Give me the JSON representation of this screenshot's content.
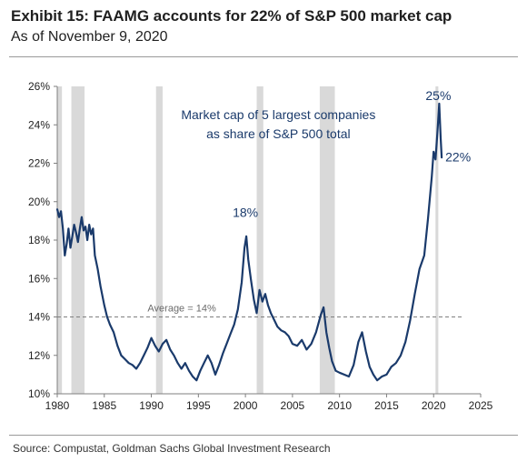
{
  "header": {
    "title": "Exhibit 15: FAAMG accounts for 22% of S&P 500 market cap",
    "subtitle": "As of November 9, 2020"
  },
  "footer": {
    "source": "Source: Compustat, Goldman Sachs Global Investment Research"
  },
  "chart_data": {
    "type": "line",
    "title": "",
    "xlabel": "",
    "ylabel": "",
    "xlim": [
      1980,
      2025
    ],
    "ylim": [
      10,
      26
    ],
    "x_ticks": [
      "1980",
      "1985",
      "1990",
      "1995",
      "2000",
      "2005",
      "2010",
      "2015",
      "2020",
      "2025"
    ],
    "y_ticks": [
      "10%",
      "12%",
      "14%",
      "16%",
      "18%",
      "20%",
      "22%",
      "24%",
      "26%"
    ],
    "grid": false,
    "line_color": "#1a3a6b",
    "shade_color": "#d9d9d9",
    "recessions": [
      [
        1980.0,
        1980.5
      ],
      [
        1981.5,
        1982.9
      ],
      [
        1990.5,
        1991.2
      ],
      [
        2001.2,
        2001.9
      ],
      [
        2007.9,
        2009.5
      ],
      [
        2020.2,
        2020.5
      ]
    ],
    "average": {
      "value": 14,
      "label": "Average = 14%"
    },
    "annotations": [
      {
        "text": "Market cap of 5 largest companies",
        "x": 2003.5,
        "y": 24.3
      },
      {
        "text": "as share of S&P 500 total",
        "x": 2003.5,
        "y": 23.3
      },
      {
        "text": "18%",
        "x": 2000.0,
        "y": 19.2
      },
      {
        "text": "25%",
        "x": 2020.5,
        "y": 25.3
      },
      {
        "text": "22%",
        "x": 2022.6,
        "y": 22.1
      }
    ],
    "series": [
      {
        "x": [
          1980.0,
          1980.2,
          1980.4,
          1980.6,
          1980.8,
          1981.0,
          1981.2,
          1981.4,
          1981.6,
          1981.8,
          1982.0,
          1982.2,
          1982.4,
          1982.6,
          1982.8,
          1983.0,
          1983.2,
          1983.4,
          1983.6,
          1983.8,
          1984.0,
          1984.3,
          1984.6,
          1985.0,
          1985.3,
          1985.6,
          1986.0,
          1986.4,
          1986.8,
          1987.2,
          1987.6,
          1988.0,
          1988.4,
          1988.8,
          1989.2,
          1989.6,
          1990.0,
          1990.4,
          1990.8,
          1991.2,
          1991.6,
          1992.0,
          1992.4,
          1992.8,
          1993.2,
          1993.6,
          1994.0,
          1994.4,
          1994.8,
          1995.2,
          1995.6,
          1996.0,
          1996.4,
          1996.8,
          1997.2,
          1997.6,
          1998.0,
          1998.4,
          1998.8,
          1999.2,
          1999.6,
          1999.9,
          2000.1,
          2000.3,
          2000.6,
          2000.9,
          2001.2,
          2001.5,
          2001.8,
          2002.1,
          2002.4,
          2002.7,
          2003.0,
          2003.4,
          2003.8,
          2004.2,
          2004.6,
          2005.0,
          2005.5,
          2006.0,
          2006.5,
          2007.0,
          2007.5,
          2008.0,
          2008.3,
          2008.6,
          2008.9,
          2009.2,
          2009.6,
          2010.0,
          2010.5,
          2011.0,
          2011.5,
          2012.0,
          2012.4,
          2012.8,
          2013.2,
          2013.6,
          2014.0,
          2014.5,
          2015.0,
          2015.5,
          2016.0,
          2016.5,
          2017.0,
          2017.5,
          2018.0,
          2018.5,
          2019.0,
          2019.4,
          2019.8,
          2020.0,
          2020.2,
          2020.4,
          2020.6,
          2020.75,
          2020.86
        ],
        "y": [
          19.6,
          19.2,
          19.5,
          18.6,
          17.2,
          17.8,
          18.6,
          17.6,
          18.2,
          18.8,
          18.4,
          17.9,
          18.6,
          19.2,
          18.5,
          18.7,
          18.0,
          18.8,
          18.3,
          18.6,
          17.2,
          16.5,
          15.6,
          14.6,
          14.0,
          13.6,
          13.2,
          12.5,
          12.0,
          11.8,
          11.6,
          11.5,
          11.3,
          11.6,
          12.0,
          12.4,
          12.9,
          12.5,
          12.2,
          12.6,
          12.8,
          12.3,
          12.0,
          11.6,
          11.3,
          11.6,
          11.2,
          10.9,
          10.7,
          11.2,
          11.6,
          12.0,
          11.6,
          11.0,
          11.5,
          12.1,
          12.6,
          13.1,
          13.6,
          14.4,
          15.8,
          17.6,
          18.2,
          17.0,
          15.9,
          14.9,
          14.2,
          15.4,
          14.8,
          15.2,
          14.6,
          14.2,
          13.9,
          13.5,
          13.3,
          13.2,
          13.0,
          12.6,
          12.5,
          12.8,
          12.3,
          12.6,
          13.2,
          14.1,
          14.5,
          13.2,
          12.4,
          11.7,
          11.2,
          11.1,
          11.0,
          10.9,
          11.5,
          12.7,
          13.2,
          12.2,
          11.4,
          11.0,
          10.7,
          10.9,
          11.0,
          11.4,
          11.6,
          12.0,
          12.7,
          13.8,
          15.2,
          16.5,
          17.2,
          19.1,
          21.3,
          22.6,
          22.2,
          23.6,
          25.1,
          23.3,
          22.3
        ]
      }
    ]
  }
}
